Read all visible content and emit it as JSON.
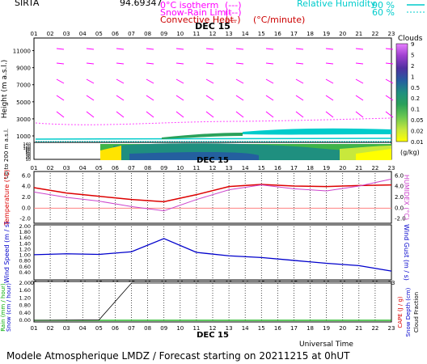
{
  "header": {
    "site": "SIRTA",
    "coords": "94.69347",
    "legend_left": [
      {
        "label": "0°C isotherm",
        "sample": "(---)",
        "color": "#ff00ff"
      },
      {
        "label": "Snow-Rain Limit",
        "sample": "(---)",
        "color": "#ff00ff"
      },
      {
        "label": "Convective Heat.",
        "sample": "(—)",
        "unit": "(°C/minute)",
        "color": "#cc0000"
      }
    ],
    "legend_right": [
      {
        "label": "Relative Humidity",
        "v1": "90 %",
        "v2": "60 %",
        "color": "#00cccc"
      }
    ]
  },
  "footer": {
    "title": "Modele Atmospherique LMDZ / Forecast starting on 20211215 at 0hUT",
    "xlabel": "Universal Time",
    "date_label": "DEC 15"
  },
  "colors": {
    "temperature": "#dd0000",
    "humidex": "#cc44cc",
    "wind": "#0000cc",
    "precip": "#000000",
    "rain_axis": "#00aa00",
    "snow_axis": "#0000cc",
    "cloud_scale": [
      "#ffff00",
      "#c8e83c",
      "#8fd34a",
      "#3fb34a",
      "#1f8f7f",
      "#245f9f",
      "#5030a0",
      "#a040d0",
      "#e880ff"
    ]
  },
  "chart_data": [
    {
      "type": "heatmap",
      "name": "clouds-and-wind-cross-section",
      "date": "DEC 15",
      "hours": [
        "01",
        "02",
        "03",
        "04",
        "05",
        "06",
        "07",
        "08",
        "09",
        "10",
        "11",
        "12",
        "13",
        "14",
        "15",
        "16",
        "17",
        "18",
        "19",
        "20",
        "21",
        "22",
        "23"
      ],
      "ylabel": "Height (m a.s.l.)",
      "y_ticks_upper": [
        1000,
        3000,
        5000,
        7000,
        9000,
        11000
      ],
      "ylim_upper": [
        1000,
        12000
      ],
      "ylabel_lower": "Up to 200 m a.s.l.",
      "y_ticks_lower": [
        10,
        20,
        30,
        40,
        60,
        80,
        100,
        120,
        140
      ],
      "colorbar_title": "Clouds",
      "colorbar_unit": "(g/kg)",
      "colorbar_ticks": [
        "0.01",
        "0.02",
        "0.05",
        "0.1",
        "0.2",
        "0.5",
        "1",
        "2",
        "5",
        "9"
      ]
    },
    {
      "type": "line",
      "name": "temperature",
      "date": "DEC 15",
      "ylabel": "Temperature (°C)",
      "ylabel_right": "HUMIDEX (°C)",
      "y_ticks": [
        "-2.0",
        "0.0",
        "2.0",
        "4.0",
        "6.0"
      ],
      "ylim": [
        -2.5,
        6.5
      ],
      "x": [
        1,
        3,
        5,
        7,
        9,
        11,
        13,
        15,
        17,
        19,
        21,
        23
      ],
      "series": [
        {
          "name": "Temperature",
          "values": [
            3.8,
            2.8,
            2.2,
            1.6,
            1.2,
            2.5,
            4.0,
            4.4,
            4.1,
            4.0,
            4.2,
            4.3
          ]
        },
        {
          "name": "HUMIDEX",
          "values": [
            3.0,
            2.0,
            1.3,
            0.3,
            -0.5,
            1.6,
            3.4,
            4.3,
            3.6,
            3.2,
            4.1,
            5.4
          ]
        }
      ]
    },
    {
      "type": "line",
      "name": "wind",
      "date": "DEC 15",
      "ylabel": "Wind Speed (m / s)",
      "ylabel_right": "Wind Gust (m / s)",
      "y_ticks": [
        "0.40",
        "0.60",
        "0.80",
        "1.00",
        "1.20",
        "1.40",
        "1.60",
        "1.80",
        "2.00"
      ],
      "ylim": [
        0.2,
        2.0
      ],
      "x": [
        1,
        3,
        5,
        7,
        9,
        11,
        13,
        15,
        17,
        19,
        21,
        23
      ],
      "series": [
        {
          "name": "Wind Speed",
          "values": [
            1.02,
            1.05,
            1.03,
            1.12,
            1.58,
            1.1,
            0.98,
            0.92,
            0.82,
            0.72,
            0.64,
            0.45
          ]
        }
      ]
    },
    {
      "type": "line",
      "name": "precipitation",
      "date": "DEC 15",
      "ylabel_left": "Rain (mm / hour)",
      "ylabel_left2": "Snow (cm / hour)",
      "ylabel_right": "CAPE (J / g)",
      "ylabel_right2": "Snow Depth (cm)",
      "ylabel_right3": "Cloud Fraction",
      "y_ticks": [
        "0.00",
        "0.40",
        "0.80",
        "1.20",
        "1.60",
        "2.00"
      ],
      "ylim": [
        0,
        2.0
      ],
      "x": [
        1,
        5,
        7,
        23
      ],
      "series": [
        {
          "name": "CAPE",
          "values": [
            0.0,
            0.02,
            2.0,
            2.0
          ]
        }
      ]
    }
  ]
}
